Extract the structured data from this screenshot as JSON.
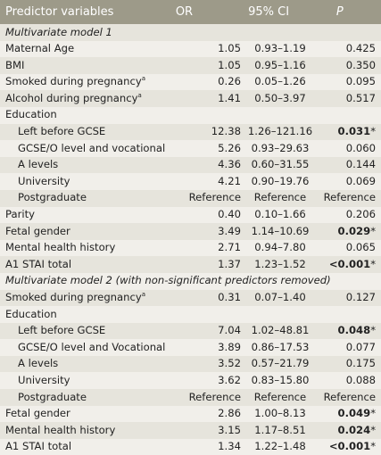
{
  "header": {
    "predictor": "Predictor variables",
    "or": "OR",
    "ci": "95% CI",
    "p": "P"
  },
  "rows": [
    {
      "label": "Multivariate model 1",
      "type": "section"
    },
    {
      "label": "Maternal Age",
      "or": "1.05",
      "ci": "0.93–1.19",
      "p": "0.425"
    },
    {
      "label": "BMI",
      "or": "1.05",
      "ci": "0.95–1.16",
      "p": "0.350"
    },
    {
      "label": "Smoked during pregnancy",
      "sup": "a",
      "or": "0.26",
      "ci": "0.05–1.26",
      "p": "0.095"
    },
    {
      "label": "Alcohol during pregnancy",
      "sup": "a",
      "or": "1.41",
      "ci": "0.50–3.97",
      "p": "0.517"
    },
    {
      "label": "Education"
    },
    {
      "label": "Left before GCSE",
      "indent": true,
      "or": "12.38",
      "ci": "1.26–121.16",
      "p": "0.031",
      "sig": true
    },
    {
      "label": "GCSE/O level and vocational",
      "indent": true,
      "or": "5.26",
      "ci": "0.93–29.63",
      "p": "0.060"
    },
    {
      "label": "A levels",
      "indent": true,
      "or": "4.36",
      "ci": "0.60–31.55",
      "p": "0.144"
    },
    {
      "label": "University",
      "indent": true,
      "or": "4.21",
      "ci": "0.90–19.76",
      "p": "0.069"
    },
    {
      "label": "Postgraduate",
      "indent": true,
      "or": "Reference",
      "ci": "Reference",
      "p": "Reference"
    },
    {
      "label": "Parity",
      "or": "0.40",
      "ci": "0.10–1.66",
      "p": "0.206"
    },
    {
      "label": "Fetal gender",
      "or": "3.49",
      "ci": "1.14–10.69",
      "p": "0.029",
      "sig": true
    },
    {
      "label": "Mental health history",
      "or": "2.71",
      "ci": "0.94–7.80",
      "p": "0.065"
    },
    {
      "label": "A1 STAI total",
      "or": "1.37",
      "ci": "1.23–1.52",
      "p": "<0.001",
      "sig": true
    },
    {
      "label": "Multivariate model 2 (with non-significant predictors removed)",
      "type": "section"
    },
    {
      "label": "Smoked during pregnancy",
      "sup": "a",
      "or": "0.31",
      "ci": "0.07–1.40",
      "p": "0.127"
    },
    {
      "label": "Education"
    },
    {
      "label": "Left before GCSE",
      "indent": true,
      "or": "7.04",
      "ci": "1.02–48.81",
      "p": "0.048",
      "sig": true
    },
    {
      "label": "GCSE/O level and Vocational",
      "indent": true,
      "or": "3.89",
      "ci": "0.86–17.53",
      "p": "0.077"
    },
    {
      "label": "A levels",
      "indent": true,
      "or": "3.52",
      "ci": "0.57–21.79",
      "p": "0.175"
    },
    {
      "label": "University",
      "indent": true,
      "or": "3.62",
      "ci": "0.83–15.80",
      "p": "0.088"
    },
    {
      "label": "Postgraduate",
      "indent": true,
      "or": "Reference",
      "ci": "Reference",
      "p": "Reference"
    },
    {
      "label": "Fetal gender",
      "or": "2.86",
      "ci": "1.00–8.13",
      "p": "0.049",
      "sig": true
    },
    {
      "label": "Mental health history",
      "or": "3.15",
      "ci": "1.17–8.51",
      "p": "0.024",
      "sig": true
    },
    {
      "label": "A1 STAI total",
      "or": "1.34",
      "ci": "1.22–1.48",
      "p": "<0.001",
      "sig": true
    }
  ],
  "sig_marker": "*",
  "colors": {
    "header_bg": "#9d9a89",
    "row_even": "#e6e4dc",
    "row_odd": "#f1efea",
    "text": "#222222"
  }
}
